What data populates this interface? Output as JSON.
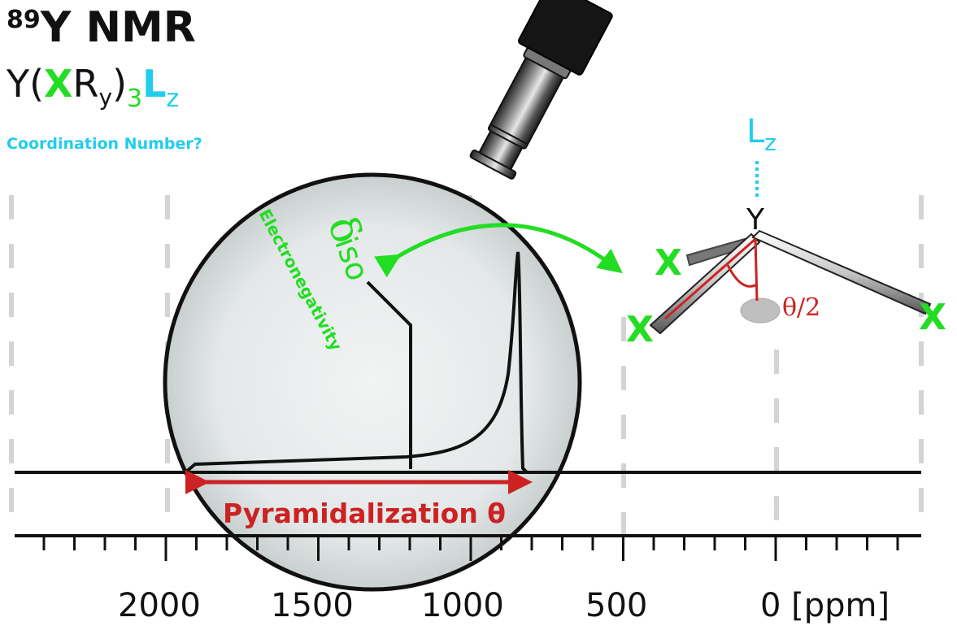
{
  "title": {
    "isotope": "89",
    "label": "Y NMR"
  },
  "formula": {
    "y": "Y(",
    "x": "X",
    "r": "R",
    "sub_y": "y",
    "close": ")",
    "sub_3": "3",
    "l": "L",
    "sub_z": "z"
  },
  "coordination_question": "Coordination Number?",
  "magnifier": {
    "delta": "δ",
    "iso": "iso",
    "electronegativity": "Electronegativity"
  },
  "pyramidalization_label": "Pyramidalization θ",
  "axis": {
    "ticks": [
      "2000",
      "1500",
      "1000",
      "500",
      "0 [ppm]"
    ]
  },
  "molecule": {
    "center": "Y",
    "ligand": "X",
    "l": "L",
    "l_sub": "z",
    "angle_label": "θ/2"
  },
  "colors": {
    "green": "#22dd22",
    "cyan": "#22ccee",
    "red": "#cc2222",
    "black": "#111111"
  }
}
